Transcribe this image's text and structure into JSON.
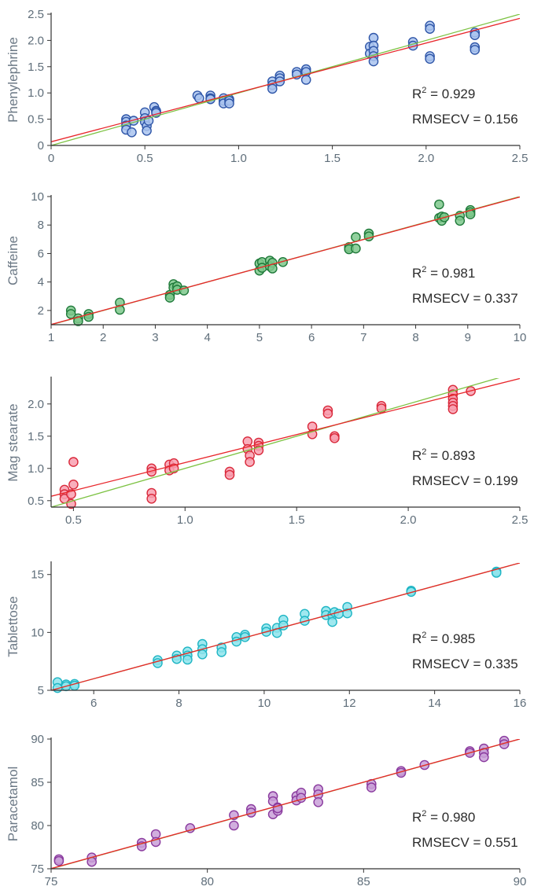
{
  "colors": {
    "fit_line": "#e8262b",
    "ideal_line": "#7cc242",
    "axis": "#333333",
    "tick_text": "#5f6e7a"
  },
  "chart_data": [
    {
      "type": "scatter",
      "ylabel": "Phenylephrine",
      "xlim": [
        0,
        2.5
      ],
      "ylim": [
        0,
        2.5
      ],
      "xticks": [
        "0",
        "0.5",
        "1.0",
        "1.5",
        "2.0",
        "2.5"
      ],
      "yticks": [
        "0",
        "0.5",
        "1.0",
        "1.5",
        "2.0",
        "2.5"
      ],
      "r2": "0.929",
      "rmsecv_label": "RMSECV = 0.156",
      "fill": "#a9c3ee",
      "stroke": "#2f56a8",
      "fit": {
        "intercept": 0.07,
        "slope": 0.94
      },
      "x": [
        0.4,
        0.4,
        0.4,
        0.4,
        0.43,
        0.44,
        0.5,
        0.5,
        0.5,
        0.51,
        0.51,
        0.52,
        0.55,
        0.56,
        0.56,
        0.56,
        0.78,
        0.79,
        0.85,
        0.85,
        0.85,
        0.92,
        0.92,
        0.92,
        0.95,
        0.95,
        0.95,
        1.18,
        1.18,
        1.18,
        1.22,
        1.22,
        1.22,
        1.31,
        1.31,
        1.36,
        1.36,
        1.36,
        1.7,
        1.7,
        1.72,
        1.72,
        1.72,
        1.72,
        1.72,
        1.93,
        1.93,
        2.02,
        2.02,
        2.02,
        2.02,
        2.26,
        2.26,
        2.26,
        2.26
      ],
      "y": [
        0.5,
        0.45,
        0.38,
        0.3,
        0.25,
        0.47,
        0.63,
        0.52,
        0.45,
        0.37,
        0.28,
        0.47,
        0.73,
        0.66,
        0.65,
        0.62,
        0.95,
        0.9,
        0.95,
        0.9,
        0.88,
        0.9,
        0.85,
        0.8,
        0.88,
        0.85,
        0.8,
        1.22,
        1.15,
        1.08,
        1.33,
        1.28,
        1.22,
        1.4,
        1.35,
        1.45,
        1.4,
        1.25,
        1.88,
        1.75,
        2.05,
        1.9,
        1.8,
        1.7,
        1.6,
        1.97,
        1.9,
        2.28,
        2.22,
        1.7,
        1.65,
        2.15,
        2.1,
        1.87,
        1.82
      ]
    },
    {
      "type": "scatter",
      "ylabel": "Caffeine",
      "xlim": [
        1,
        10
      ],
      "ylim": [
        1,
        10
      ],
      "xticks": [
        "1",
        "2",
        "3",
        "4",
        "5",
        "6",
        "7",
        "8",
        "9",
        "10"
      ],
      "yticks": [
        "2",
        "4",
        "6",
        "8",
        "10"
      ],
      "r2": "0.981",
      "rmsecv_label": "RMSECV = 0.337",
      "fill": "#7ec88c",
      "stroke": "#1f7a3a",
      "fit": {
        "intercept": 0.02,
        "slope": 0.995
      },
      "x": [
        1.38,
        1.38,
        1.52,
        1.52,
        1.72,
        1.72,
        2.32,
        2.32,
        3.28,
        3.28,
        3.35,
        3.35,
        3.42,
        3.42,
        3.55,
        5.0,
        5.0,
        5.05,
        5.05,
        5.2,
        5.2,
        5.25,
        5.25,
        5.45,
        6.72,
        6.72,
        6.85,
        6.85,
        7.1,
        7.1,
        8.45,
        8.45,
        8.5,
        8.5,
        8.55,
        8.85,
        8.85,
        9.05,
        9.05,
        9.05
      ],
      "y": [
        2.0,
        1.75,
        1.45,
        1.25,
        1.75,
        1.55,
        2.55,
        2.05,
        3.1,
        2.9,
        3.85,
        3.6,
        3.7,
        3.45,
        3.4,
        5.3,
        4.8,
        5.4,
        5.0,
        5.5,
        5.1,
        5.35,
        4.95,
        5.4,
        6.45,
        6.3,
        7.15,
        6.35,
        7.4,
        7.2,
        9.45,
        8.5,
        8.6,
        8.3,
        8.55,
        8.65,
        8.3,
        9.05,
        8.9,
        8.75
      ]
    },
    {
      "type": "scatter",
      "ylabel": "Mag stearate",
      "xlim": [
        0.4,
        2.5
      ],
      "ylim": [
        0.4,
        2.4
      ],
      "xticks": [
        "0.5",
        "1.0",
        "1.5",
        "2.0",
        "2.5"
      ],
      "yticks": [
        "0.5",
        "1.0",
        "1.5",
        "2.0"
      ],
      "r2": "0.893",
      "rmsecv_label": "RMSECV = 0.199",
      "fill": "#f8a0b0",
      "stroke": "#d9283a",
      "fit": {
        "intercept": 0.22,
        "slope": 0.87
      },
      "x": [
        0.46,
        0.46,
        0.46,
        0.49,
        0.49,
        0.5,
        0.5,
        0.85,
        0.85,
        0.85,
        0.85,
        0.93,
        0.93,
        0.95,
        0.95,
        1.2,
        1.2,
        1.28,
        1.28,
        1.29,
        1.29,
        1.33,
        1.33,
        1.33,
        1.57,
        1.57,
        1.64,
        1.64,
        1.67,
        1.67,
        1.88,
        1.88,
        2.2,
        2.2,
        2.2,
        2.2,
        2.2,
        2.2,
        2.28
      ],
      "y": [
        0.67,
        0.6,
        0.53,
        0.45,
        0.6,
        1.1,
        0.75,
        1.0,
        0.95,
        0.62,
        0.53,
        1.06,
        0.97,
        1.08,
        1.0,
        0.95,
        0.9,
        1.42,
        1.3,
        1.2,
        1.1,
        1.4,
        1.35,
        1.28,
        1.65,
        1.53,
        1.9,
        1.85,
        1.5,
        1.47,
        1.97,
        1.93,
        2.22,
        2.15,
        2.08,
        2.02,
        1.97,
        1.92,
        2.2
      ]
    },
    {
      "type": "scatter",
      "ylabel": "Tablettose",
      "xlim": [
        5,
        16
      ],
      "ylim": [
        5,
        16
      ],
      "xticks": [
        "6",
        "8",
        "10",
        "12",
        "14",
        "16"
      ],
      "yticks": [
        "5",
        "10",
        "15"
      ],
      "r2": "0.985",
      "rmsecv_label": "RMSECV = 0.335",
      "fill": "#8ee4ec",
      "stroke": "#1fb5c4",
      "fit": {
        "intercept": 0.0,
        "slope": 1.0
      },
      "x": [
        5.15,
        5.15,
        5.35,
        5.35,
        5.55,
        5.55,
        7.5,
        7.5,
        7.95,
        7.95,
        8.2,
        8.2,
        8.2,
        8.55,
        8.55,
        8.55,
        9.0,
        9.0,
        9.35,
        9.35,
        9.55,
        9.55,
        10.05,
        10.05,
        10.3,
        10.3,
        10.45,
        10.45,
        10.95,
        10.95,
        11.45,
        11.45,
        11.6,
        11.6,
        11.65,
        11.75,
        11.95,
        11.95,
        13.45,
        13.45,
        15.45,
        15.45
      ],
      "y": [
        5.7,
        5.2,
        5.5,
        5.35,
        5.55,
        5.4,
        7.6,
        7.35,
        8.0,
        7.7,
        8.35,
        8.0,
        7.65,
        9.0,
        8.55,
        8.1,
        8.7,
        8.3,
        9.6,
        9.2,
        9.8,
        9.6,
        10.35,
        10.05,
        10.4,
        9.95,
        11.1,
        10.6,
        11.6,
        11.0,
        11.85,
        11.5,
        11.5,
        10.9,
        11.75,
        11.6,
        12.2,
        11.65,
        13.6,
        13.5,
        15.25,
        15.15
      ]
    },
    {
      "type": "scatter",
      "ylabel": "Paracetamol",
      "xlim": [
        75,
        90
      ],
      "ylim": [
        75,
        90
      ],
      "xticks": [
        "75",
        "80",
        "85",
        "90"
      ],
      "yticks": [
        "75",
        "80",
        "85",
        "90"
      ],
      "r2": "0.980",
      "rmsecv_label": "RMSECV = 0.551",
      "fill": "#c9a0d8",
      "stroke": "#8a3a9e",
      "fit": {
        "intercept": 0.1,
        "slope": 0.999
      },
      "x": [
        75.25,
        75.25,
        76.3,
        76.3,
        77.9,
        77.9,
        78.35,
        78.35,
        79.45,
        80.85,
        80.85,
        81.4,
        81.4,
        82.1,
        82.1,
        82.1,
        82.25,
        82.25,
        82.25,
        82.85,
        82.85,
        83.0,
        83.0,
        83.55,
        83.55,
        83.55,
        85.25,
        85.25,
        86.2,
        86.2,
        86.95,
        88.4,
        88.4,
        88.85,
        88.85,
        88.85,
        89.5,
        89.5
      ],
      "y": [
        76.1,
        75.9,
        76.3,
        75.8,
        78.0,
        77.6,
        79.0,
        78.1,
        79.7,
        81.2,
        80.0,
        81.9,
        81.5,
        83.4,
        82.8,
        81.3,
        82.1,
        81.7,
        82.0,
        83.4,
        82.9,
        83.8,
        83.2,
        84.2,
        83.6,
        82.7,
        84.8,
        84.4,
        86.3,
        86.1,
        87.0,
        88.6,
        88.4,
        88.9,
        88.4,
        87.9,
        89.8,
        89.4
      ]
    }
  ]
}
